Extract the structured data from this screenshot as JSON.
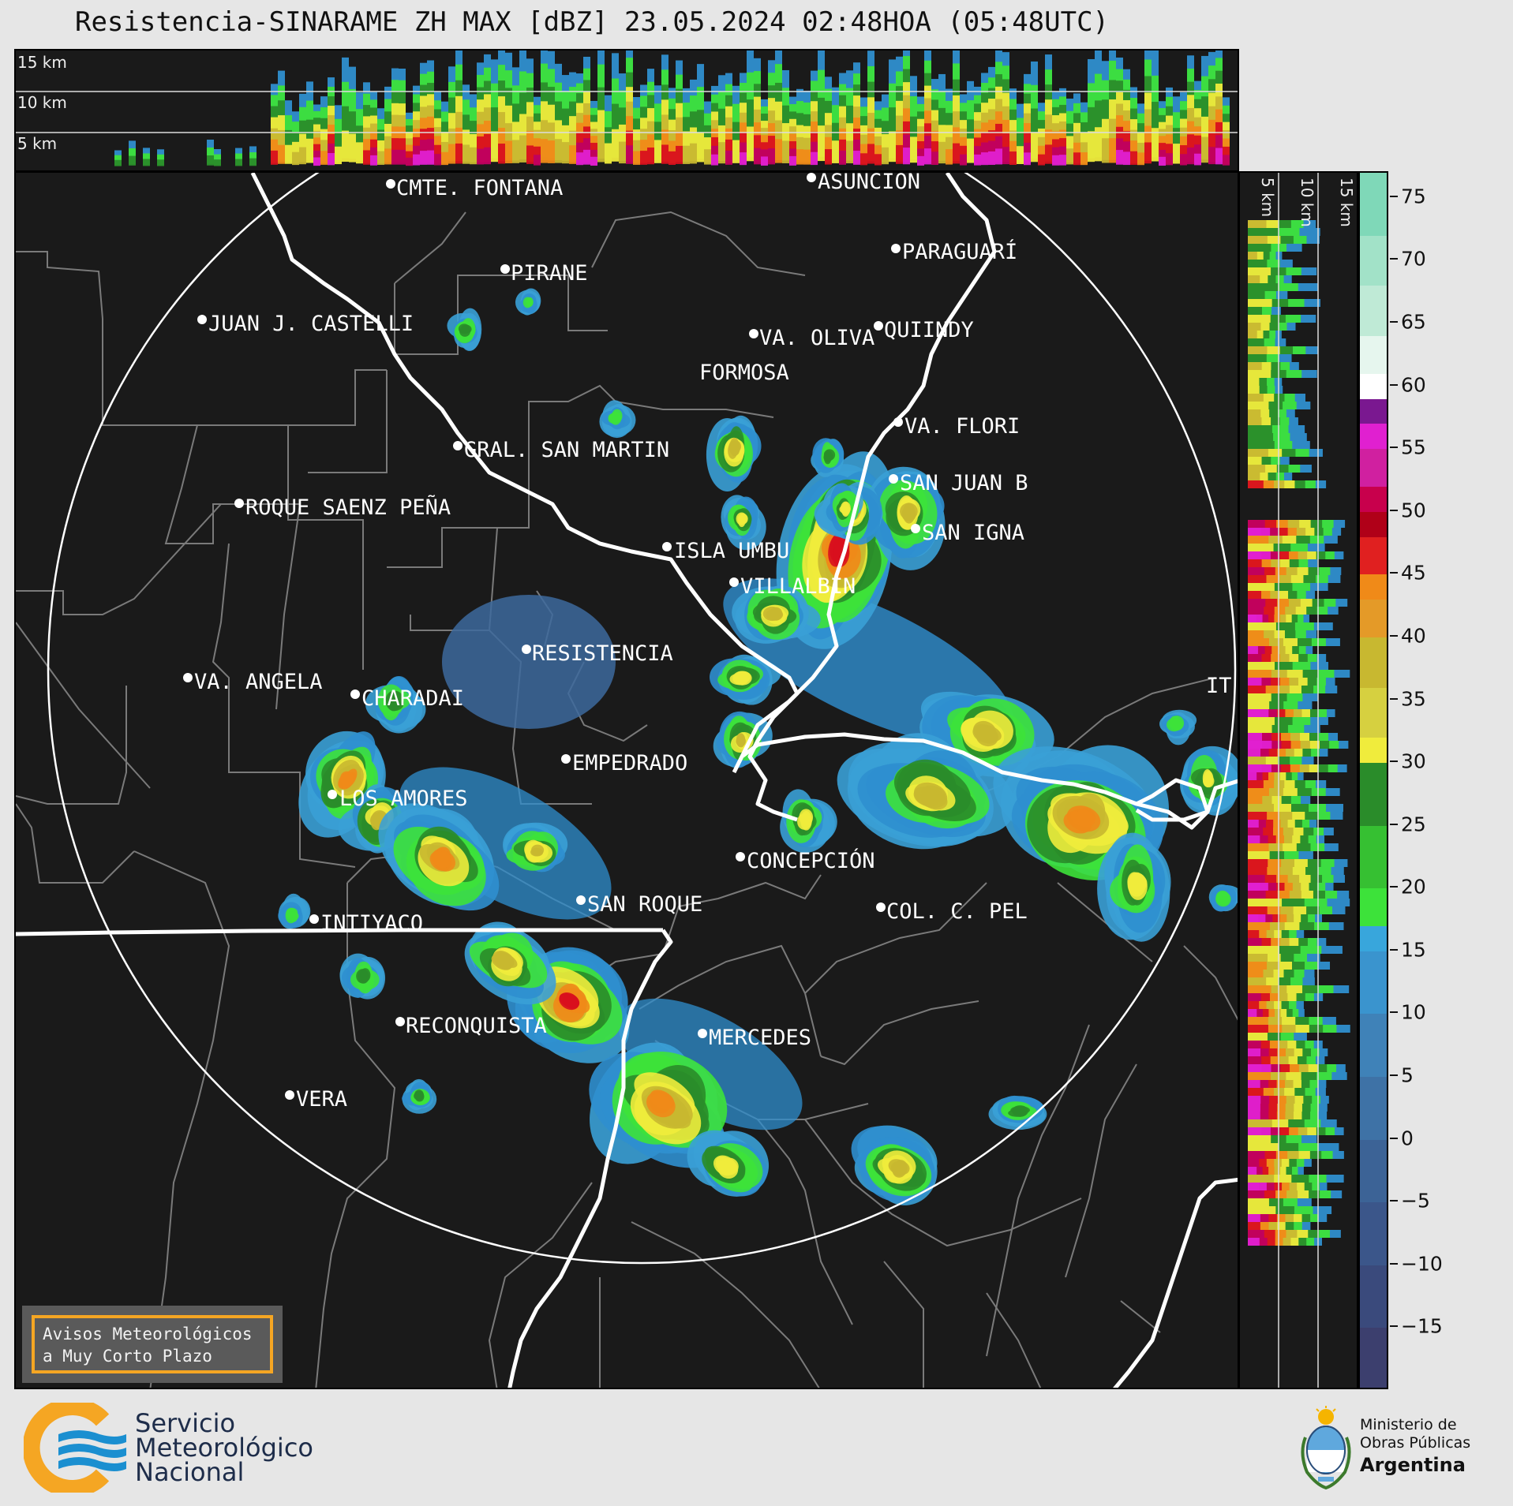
{
  "title": "Resistencia-SINARAME ZH MAX [dBZ] 23.05.2024 02:48HOA (05:48UTC)",
  "top_panel": {
    "height_labels": [
      "15 km",
      "10 km",
      "5 km"
    ]
  },
  "side_panel": {
    "height_labels": [
      "5 km",
      "10 km",
      "15 km"
    ]
  },
  "map": {
    "places": [
      {
        "name": "CMTE. FONTANA"
      },
      {
        "name": "ASUNCIÓN"
      },
      {
        "name": "PARAGUARÍ"
      },
      {
        "name": "PIRANE"
      },
      {
        "name": "JUAN J. CASTELLI"
      },
      {
        "name": "VA. OLIVA"
      },
      {
        "name": "QUIINDY"
      },
      {
        "name": "FORMOSA"
      },
      {
        "name": "VA. FLORI"
      },
      {
        "name": "GRAL. SAN MARTIN"
      },
      {
        "name": "SAN JUAN B"
      },
      {
        "name": "ROQUE SAENZ PEÑA"
      },
      {
        "name": "SAN IGNA"
      },
      {
        "name": "ISLA UMBU"
      },
      {
        "name": "VILLALBIN"
      },
      {
        "name": "RESISTENCIA"
      },
      {
        "name": "VA. ANGELA"
      },
      {
        "name": "CHARADAI"
      },
      {
        "name": "IT"
      },
      {
        "name": "EMPEDRADO"
      },
      {
        "name": "LOS AMORES"
      },
      {
        "name": "CONCEPCIÓN"
      },
      {
        "name": "SAN ROQUE"
      },
      {
        "name": "COL. C. PEL"
      },
      {
        "name": "INTIYACO"
      },
      {
        "name": "RECONQUISTA"
      },
      {
        "name": "MERCEDES"
      },
      {
        "name": "VERA"
      }
    ]
  },
  "colorbar": {
    "unit": "dBZ",
    "ticks": [
      "75",
      "70",
      "65",
      "60",
      "55",
      "50",
      "45",
      "40",
      "35",
      "30",
      "25",
      "20",
      "15",
      "10",
      "5",
      "0",
      "−5",
      "−10",
      "−15"
    ],
    "range": [
      -20,
      77
    ],
    "colors": {
      "below_-5": "#2f3b6e",
      "-5_0": "#3a5a8e",
      "0_5": "#3f78ad",
      "5_17": "#3aa0d6",
      "17_20": "#3de23a",
      "20_30": "#2a8c2a",
      "30_35": "#f0ec3c",
      "35_40": "#c8b830",
      "40_45": "#f08a18",
      "45_50": "#d8101e",
      "50_55": "#c00060",
      "55_58": "#e020d0",
      "58_60": "#7a1890",
      "60_65": "#ffffff",
      "65_77": "#7fd8b8"
    }
  },
  "warning_box": {
    "line1": "Avisos Meteorológicos",
    "line2": "a Muy Corto Plazo"
  },
  "logos": {
    "smn": {
      "line1": "Servicio",
      "line2": "Meteorológico",
      "line3": "Nacional"
    },
    "ministerio": {
      "line1": "Ministerio de",
      "line2": "Obras Públicas",
      "line3": "Argentina"
    }
  }
}
